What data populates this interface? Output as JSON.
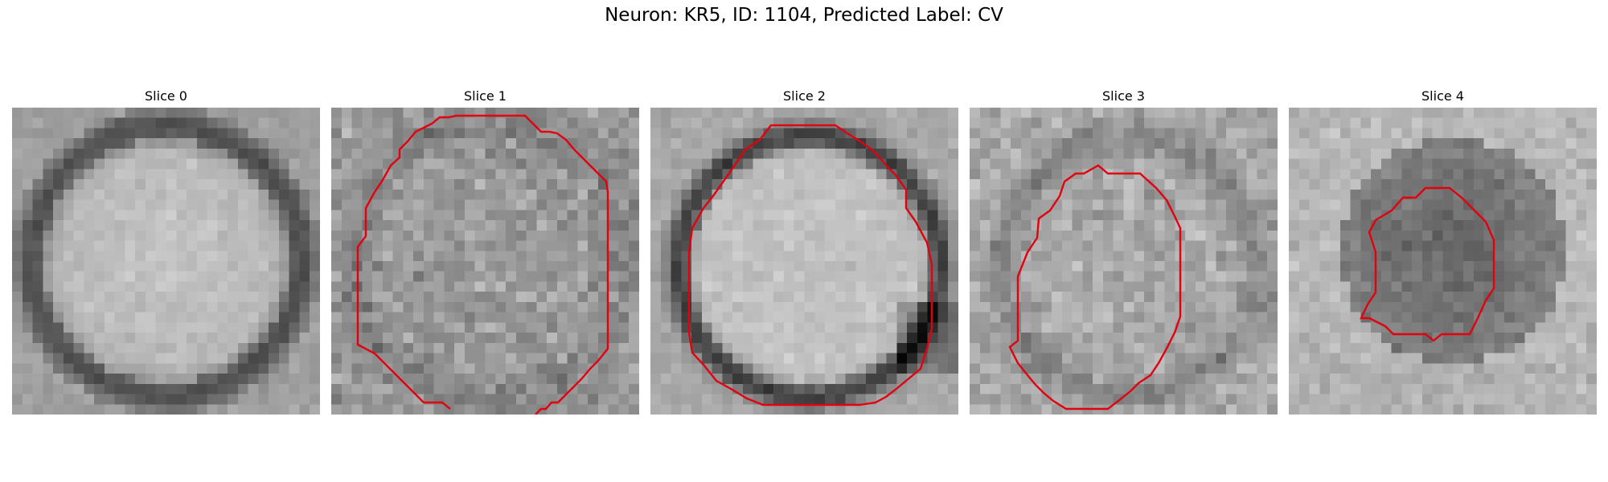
{
  "figure": {
    "title": "Neuron: KR5, ID: 1104, Predicted Label: CV"
  },
  "panels": [
    {
      "label": "Slice 0",
      "has_contour": false,
      "texture": "bright cell with dark ring",
      "seed": 11
    },
    {
      "label": "Slice 1",
      "has_contour": true,
      "texture": "noisy mid-gray",
      "seed": 23
    },
    {
      "label": "Slice 2",
      "has_contour": true,
      "texture": "bright cell with dark ring",
      "seed": 37
    },
    {
      "label": "Slice 3",
      "has_contour": true,
      "texture": "noisy light-gray",
      "seed": 41
    },
    {
      "label": "Slice 4",
      "has_contour": true,
      "texture": "dark center with light surround",
      "seed": 53
    }
  ],
  "colors": {
    "contour": "#e3000f"
  },
  "image_grid": {
    "size": 30
  }
}
